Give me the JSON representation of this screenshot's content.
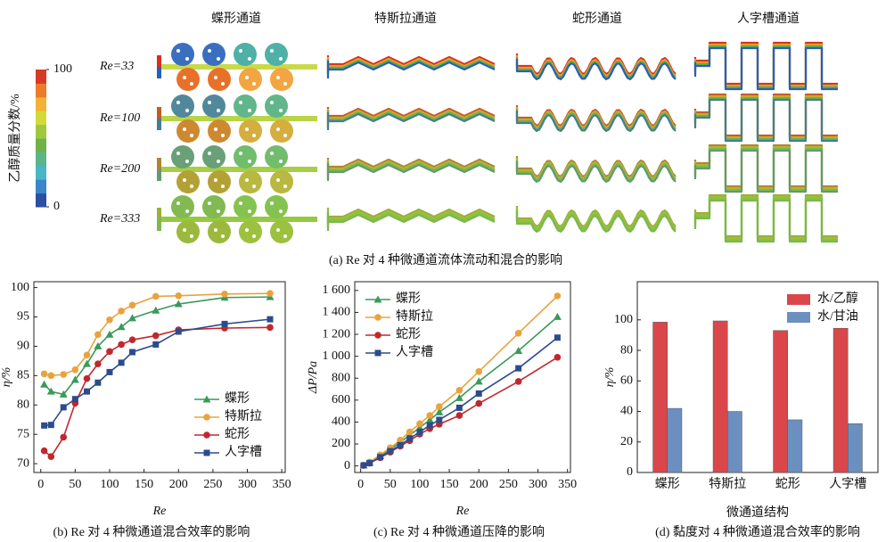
{
  "figure_a": {
    "columns": [
      "蝶形通道",
      "特斯拉通道",
      "蛇形通道",
      "人字槽通道"
    ],
    "rows": [
      "Re=33",
      "Re=100",
      "Re=200",
      "Re=333"
    ],
    "colorbar": {
      "label": "乙醇质量分数/%",
      "lim": [
        0,
        100
      ],
      "ticks": [
        0,
        100
      ]
    },
    "caption": "(a) Re 对 4 种微通道流体流动和混合的影响"
  },
  "chart_data": [
    {
      "type": "line",
      "caption": "(b) Re 对 4 种微通道混合效率的影响",
      "xlabel": "Re",
      "ylabel": "η/%",
      "x": [
        5,
        15,
        33,
        50,
        67,
        83,
        100,
        117,
        133,
        167,
        200,
        267,
        333
      ],
      "xlim": [
        -10,
        355
      ],
      "xticks": [
        0,
        50,
        100,
        150,
        200,
        250,
        300,
        350
      ],
      "ylim": [
        68.5,
        101
      ],
      "yticks": [
        70,
        75,
        80,
        85,
        90,
        95,
        100
      ],
      "legend": "lower right",
      "series": [
        {
          "name": "蝶形",
          "color": "#3a9a5b",
          "marker": "triangle",
          "values": [
            83.5,
            82.3,
            81.8,
            84.3,
            87,
            90,
            92,
            93.3,
            94.8,
            96.1,
            97.2,
            98.3,
            98.4
          ]
        },
        {
          "name": "特斯拉",
          "color": "#e8a33d",
          "marker": "circle",
          "values": [
            85.3,
            85,
            85.2,
            86,
            88.5,
            92,
            94.5,
            96,
            97,
            98.5,
            98.6,
            98.9,
            99
          ]
        },
        {
          "name": "蛇形",
          "color": "#c0282d",
          "marker": "circle",
          "values": [
            72.2,
            71.2,
            74.5,
            80.3,
            84.5,
            87,
            89.1,
            90.3,
            91.1,
            91.8,
            92.8,
            93.1,
            93.2
          ]
        },
        {
          "name": "人字槽",
          "color": "#2b4c8c",
          "marker": "square",
          "values": [
            76.5,
            76.6,
            79.6,
            81,
            82.3,
            83.8,
            85.6,
            87.2,
            89,
            90.3,
            92.5,
            93.8,
            94.6
          ]
        }
      ]
    },
    {
      "type": "line",
      "caption": "(c) Re 对 4 种微通道压降的影响",
      "xlabel": "Re",
      "ylabel": "ΔP/Pa",
      "x": [
        5,
        15,
        33,
        50,
        67,
        83,
        100,
        117,
        133,
        167,
        200,
        267,
        333
      ],
      "xlim": [
        -10,
        355
      ],
      "xticks": [
        0,
        50,
        100,
        150,
        200,
        250,
        300,
        350
      ],
      "ylim": [
        -60,
        1680
      ],
      "yticks": [
        0,
        200,
        400,
        600,
        800,
        {
          "value": 1000,
          "label": "1 000"
        },
        {
          "value": 1200,
          "label": "1 200"
        },
        {
          "value": 1400,
          "label": "1 400"
        },
        {
          "value": 1600,
          "label": "1 600"
        }
      ],
      "legend": "upper left",
      "series": [
        {
          "name": "蝶形",
          "color": "#3a9a5b",
          "marker": "triangle",
          "values": [
            5,
            30,
            90,
            150,
            215,
            280,
            350,
            420,
            490,
            620,
            770,
            1050,
            1360
          ]
        },
        {
          "name": "特斯拉",
          "color": "#e8a33d",
          "marker": "circle",
          "values": [
            5,
            35,
            100,
            165,
            235,
            310,
            385,
            460,
            540,
            690,
            860,
            1210,
            1550
          ]
        },
        {
          "name": "蛇形",
          "color": "#c0282d",
          "marker": "circle",
          "values": [
            5,
            25,
            75,
            125,
            180,
            230,
            290,
            340,
            380,
            460,
            570,
            770,
            990
          ]
        },
        {
          "name": "人字槽",
          "color": "#2b4c8c",
          "marker": "square",
          "values": [
            5,
            25,
            80,
            135,
            190,
            250,
            310,
            370,
            420,
            530,
            660,
            890,
            1170
          ]
        }
      ]
    },
    {
      "type": "bar",
      "caption": "(d) 黏度对 4 种微通道混合效率的影响",
      "xlabel": "微通道结构",
      "ylabel": "η/%",
      "categories": [
        "蝶形",
        "特斯拉",
        "蛇形",
        "人字槽"
      ],
      "ylim": [
        0,
        125
      ],
      "yticks": [
        0,
        20,
        40,
        60,
        80,
        100
      ],
      "legend": "upper right",
      "series": [
        {
          "name": "水/乙醇",
          "color": "#d9474b",
          "values": [
            98.5,
            99.3,
            93,
            94.5
          ]
        },
        {
          "name": "水/甘油",
          "color": "#6b8fbf",
          "values": [
            42,
            40,
            34.5,
            32
          ]
        }
      ]
    }
  ]
}
